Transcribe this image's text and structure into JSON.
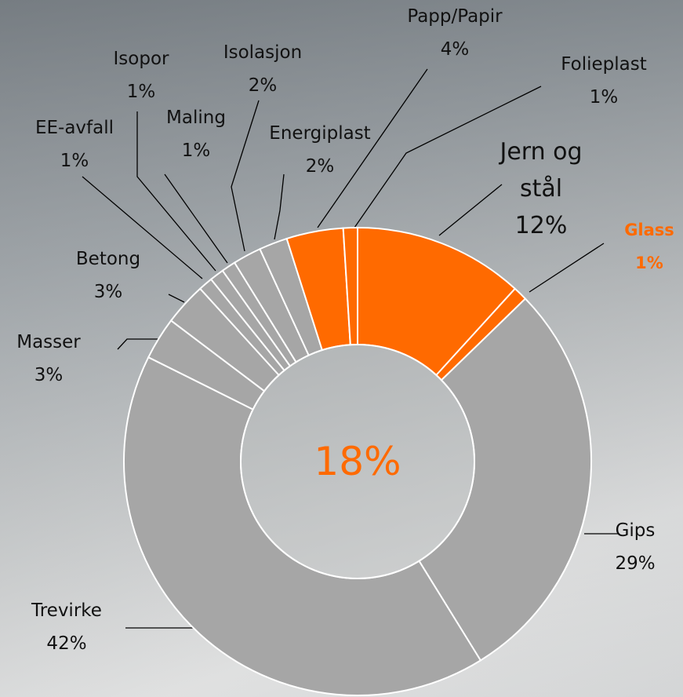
{
  "chart_data": {
    "type": "donut",
    "categories": [
      "Jern og stål",
      "Glass",
      "Gips",
      "Trevirke",
      "Masser",
      "Betong",
      "EE-avfall",
      "Isopor",
      "Maling",
      "Isolasjon",
      "Energiplast",
      "Papp/Papir",
      "Folieplast"
    ],
    "values": [
      12,
      1,
      29,
      42,
      3,
      3,
      1,
      1,
      1,
      2,
      2,
      4,
      1
    ],
    "value_labels": [
      "12%",
      "1%",
      "29%",
      "42%",
      "3%",
      "3%",
      "1%",
      "1%",
      "1%",
      "2%",
      "2%",
      "4%",
      "1%"
    ],
    "colors": [
      "#ff6a00",
      "#ff6a00",
      "#a6a6a6",
      "#a6a6a6",
      "#a6a6a6",
      "#a6a6a6",
      "#a6a6a6",
      "#a6a6a6",
      "#a6a6a6",
      "#a6a6a6",
      "#a6a6a6",
      "#ff6a00",
      "#ff6a00"
    ],
    "center_label": "18%"
  }
}
